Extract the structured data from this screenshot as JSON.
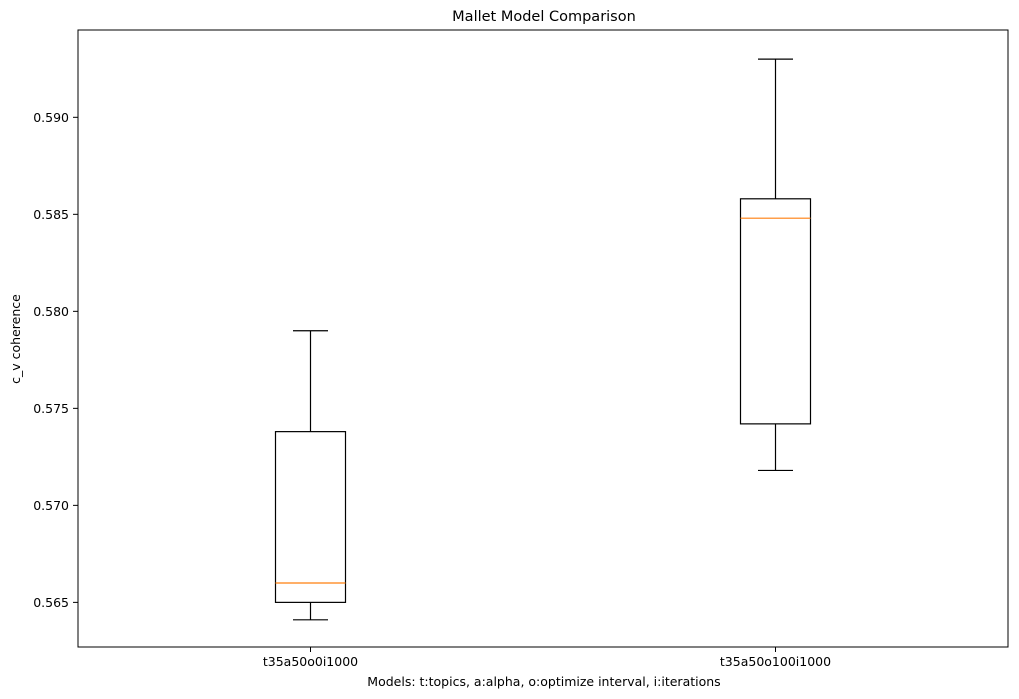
{
  "chart_data": {
    "type": "boxplot",
    "title": "Mallet Model Comparison",
    "xlabel": "Models: t:topics, a:alpha, o:optimize interval, i:iterations",
    "ylabel": "c_v coherence",
    "ylim": [
      0.5627,
      0.5945
    ],
    "yticks": [
      0.565,
      0.57,
      0.575,
      0.58,
      0.585,
      0.59
    ],
    "ytick_labels": [
      "0.565",
      "0.570",
      "0.575",
      "0.580",
      "0.585",
      "0.590"
    ],
    "categories": [
      "t35a50o0i1000",
      "t35a50o100i1000"
    ],
    "boxes": [
      {
        "name": "t35a50o0i1000",
        "whisker_low": 0.5641,
        "q1": 0.565,
        "median": 0.566,
        "q3": 0.5738,
        "whisker_high": 0.579
      },
      {
        "name": "t35a50o100i1000",
        "whisker_low": 0.5718,
        "q1": 0.5742,
        "median": 0.5848,
        "q3": 0.5858,
        "whisker_high": 0.593
      }
    ],
    "colors": {
      "box": "#000000",
      "median": "#ff7f0e",
      "frame": "#000000"
    },
    "grid": false
  }
}
